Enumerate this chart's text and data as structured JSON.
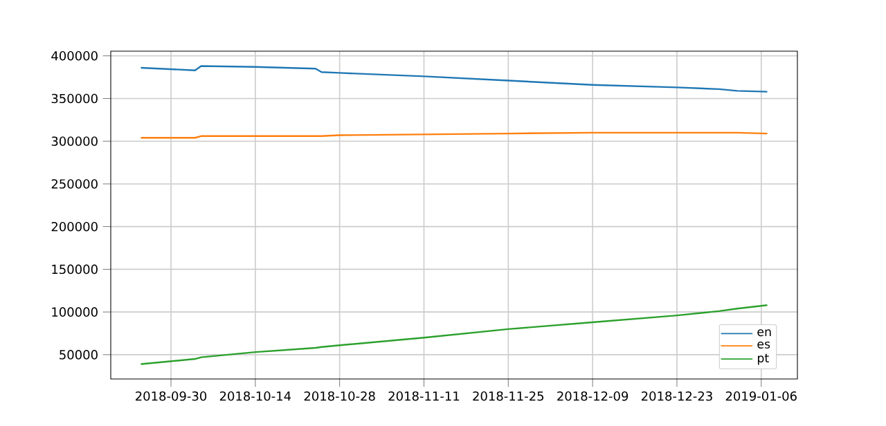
{
  "chart_data": {
    "type": "line",
    "x": [
      "2018-09-25",
      "2018-10-04",
      "2018-10-05",
      "2018-10-14",
      "2018-10-24",
      "2018-10-25",
      "2018-10-28",
      "2018-11-11",
      "2018-11-25",
      "2018-12-09",
      "2018-12-23",
      "2018-12-30",
      "2019-01-02",
      "2019-01-07"
    ],
    "series": [
      {
        "name": "en",
        "color": "#1f77b4",
        "values": [
          386000,
          383000,
          388000,
          387000,
          385000,
          381000,
          380000,
          376000,
          371000,
          366000,
          363000,
          361000,
          359000,
          358000
        ]
      },
      {
        "name": "es",
        "color": "#ff7f0e",
        "values": [
          304000,
          304000,
          306000,
          306000,
          306000,
          306000,
          307000,
          308000,
          309000,
          310000,
          310000,
          310000,
          310000,
          309000
        ]
      },
      {
        "name": "pt",
        "color": "#2ca02c",
        "values": [
          39000,
          45000,
          47000,
          53000,
          58000,
          59000,
          61000,
          70000,
          80000,
          88000,
          96000,
          101000,
          104000,
          108000
        ]
      }
    ],
    "xlim": [
      "2018-09-20",
      "2019-01-12"
    ],
    "xticks": [
      "2018-09-30",
      "2018-10-14",
      "2018-10-28",
      "2018-11-11",
      "2018-11-25",
      "2018-12-09",
      "2018-12-23",
      "2019-01-06"
    ],
    "ylim": [
      21550,
      405450
    ],
    "yticks": [
      50000,
      100000,
      150000,
      200000,
      250000,
      300000,
      350000,
      400000
    ],
    "grid": true,
    "legend": "bottom right",
    "marker": "none",
    "line_style": "solid"
  }
}
